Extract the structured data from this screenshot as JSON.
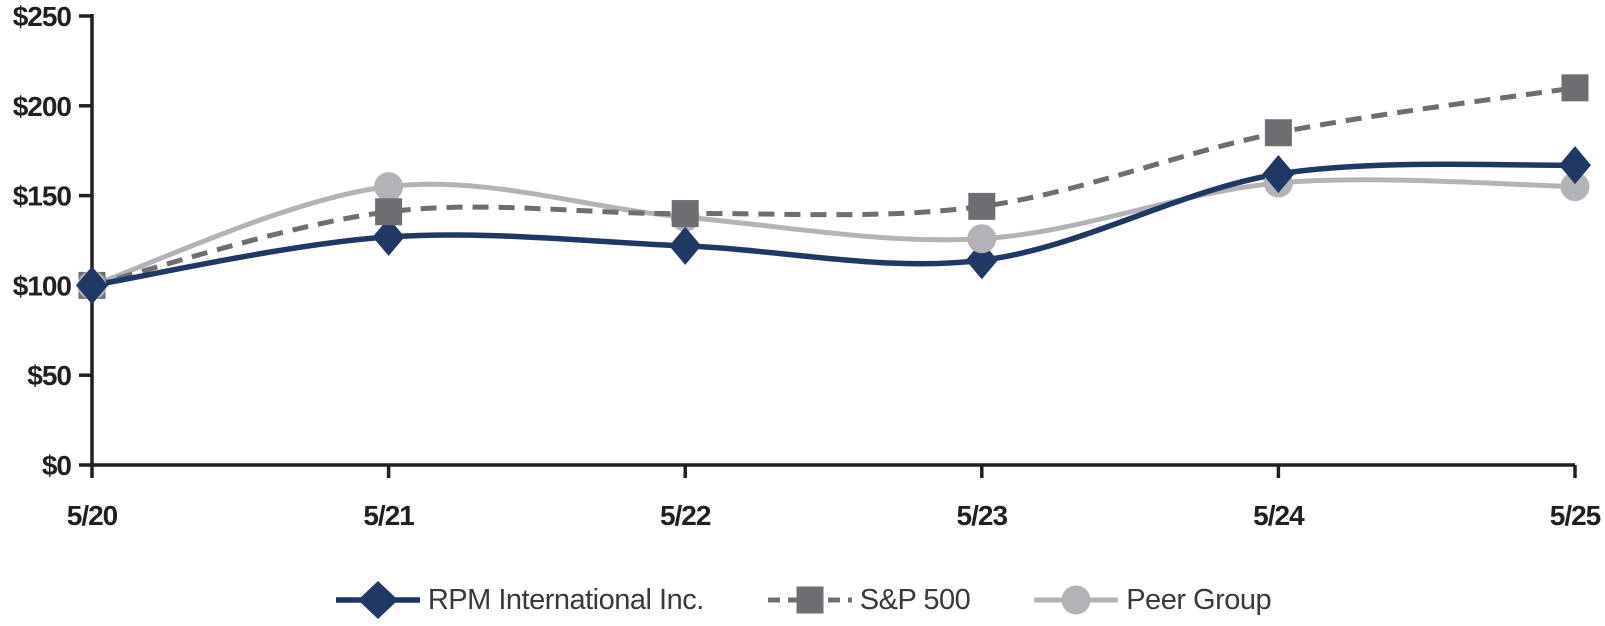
{
  "chart_data": {
    "type": "line",
    "title": "",
    "xlabel": "",
    "ylabel": "",
    "categories": [
      "5/20",
      "5/21",
      "5/22",
      "5/23",
      "5/24",
      "5/25"
    ],
    "series": [
      {
        "name": "RPM International Inc.",
        "values": [
          100,
          127,
          122,
          114,
          162,
          167
        ],
        "color": "#1f3864",
        "marker": "diamond",
        "line_style": "solid",
        "line_width": 5.5
      },
      {
        "name": "S&P 500",
        "values": [
          100,
          141,
          140,
          144,
          185,
          210
        ],
        "color": "#6d6e71",
        "marker": "square",
        "line_style": "dashed",
        "line_width": 5
      },
      {
        "name": "Peer Group",
        "values": [
          100,
          155,
          138,
          126,
          157,
          155
        ],
        "color": "#b1b3b6",
        "marker": "circle",
        "line_style": "solid",
        "line_width": 5
      }
    ],
    "y_ticks": [
      {
        "label": "$250",
        "value": 250
      },
      {
        "label": "$200",
        "value": 200
      },
      {
        "label": "$150",
        "value": 150
      },
      {
        "label": "$100",
        "value": 100
      },
      {
        "label": "$50",
        "value": 50
      },
      {
        "label": "$0",
        "value": 0
      }
    ],
    "ylim": [
      0,
      250
    ],
    "grid": false,
    "smoothed": true,
    "legend_position": "bottom",
    "axis_color": "#231f20",
    "background_color": "#ffffff"
  }
}
